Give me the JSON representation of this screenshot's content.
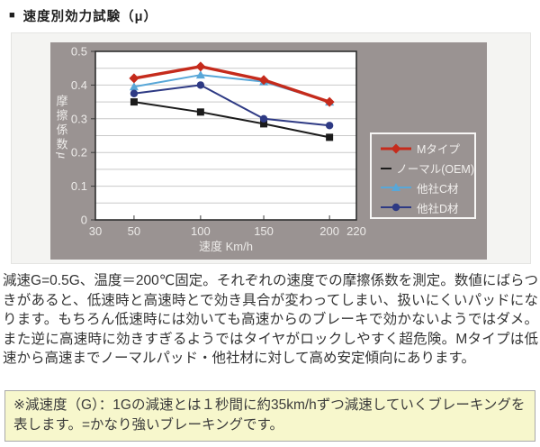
{
  "page": {
    "title_bullet": "■",
    "title": "速度別効力試験（μ）"
  },
  "chart_data": {
    "type": "line",
    "title": "",
    "xlabel": "速度 Km/h",
    "ylabel": "摩擦係数",
    "ylabel_unit": "μ",
    "x": [
      50,
      100,
      150,
      200
    ],
    "x_ticks": [
      30,
      50,
      100,
      150,
      200,
      220
    ],
    "y_ticks": [
      0,
      0.1,
      0.2,
      0.3,
      0.4,
      0.5
    ],
    "xlim": [
      30,
      220
    ],
    "ylim": [
      0,
      0.5
    ],
    "grid": true,
    "grid_step": 0.05,
    "legend_position": "inside-right",
    "series": [
      {
        "name": "Mタイプ",
        "color": "#c52b1c",
        "marker": "diamond",
        "values": [
          0.42,
          0.455,
          0.415,
          0.35
        ]
      },
      {
        "name": "ノーマル(OEM)",
        "color": "#1b1b1b",
        "marker": "square",
        "values": [
          0.35,
          0.32,
          0.285,
          0.245
        ]
      },
      {
        "name": "他社C材",
        "color": "#58a7d8",
        "marker": "triangle",
        "values": [
          0.395,
          0.43,
          0.41,
          0.35
        ]
      },
      {
        "name": "他社D材",
        "color": "#2e3a84",
        "marker": "circle",
        "values": [
          0.375,
          0.4,
          0.3,
          0.28
        ]
      }
    ]
  },
  "description": {
    "paragraph": "減速G=0.5G、温度＝200℃固定。それぞれの速度での摩擦係数を測定。数値にばらつきがあると、低速時と高速時とで効き具合が変わってしまい、扱いにくいパッドになります。もちろん低速時には効いても高速からのブレーキで効かないようではダメ。また逆に高速時に効きすぎるようではタイヤがロックしやすく超危険。Mタイプは低速から高速までノーマルパッド・他社材に対して高め安定傾向にあります。"
  },
  "note": {
    "text": "※減速度（G）：1Gの減速とは１秒間に約35km/hずつ減速していくブレーキングを表します。=かなり強いブレーキングです。"
  },
  "colors": {
    "panel_bg": "#9a9392",
    "panel_outer_bg": "#f4f4f2",
    "plot_bg": "#ffffff",
    "grid": "#c9c9c9",
    "plot_border": "#2e2e2e",
    "axis_text": "#edebe9",
    "legend_border": "#f7f6f5",
    "note_bg": "#f7f7cc",
    "note_border": "#a9a9a9"
  }
}
